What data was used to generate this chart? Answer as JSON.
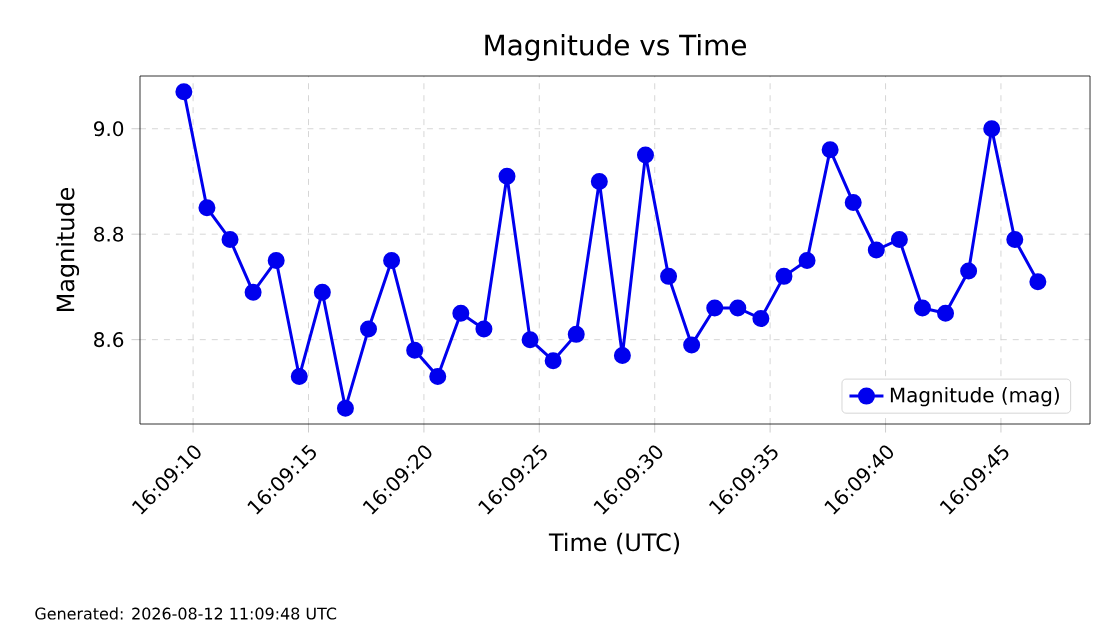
{
  "chart_data": {
    "type": "line",
    "title": "Magnitude vs Time",
    "xlabel": "Time (UTC)",
    "ylabel": "Magnitude",
    "annotations": [
      "Generated: 2026-08-12 11:09:48 UTC"
    ],
    "x": [
      16.1526667,
      16.1529444,
      16.1532222,
      16.1535,
      16.1537778,
      16.1540556,
      16.1543333,
      16.1546111,
      16.1548889,
      16.1551667,
      16.1554444,
      16.1557222,
      16.156,
      16.1562778,
      16.1565556,
      16.1568333,
      16.1571111,
      16.1573889,
      16.1576667,
      16.1579444,
      16.1582222,
      16.1585,
      16.1587778,
      16.1590556,
      16.1593333,
      16.1596111,
      16.1598889,
      16.1601667,
      16.1604444,
      16.1607222,
      16.161,
      16.1612778,
      16.1615556,
      16.1618333,
      16.1621111,
      16.1623889,
      16.1626667,
      16.1629444
    ],
    "series": [
      {
        "name": "Magnitude (mag)",
        "color": "#0000ee",
        "values": [
          9.07,
          8.85,
          8.79,
          8.69,
          8.75,
          8.53,
          8.69,
          8.47,
          8.62,
          8.75,
          8.58,
          8.53,
          8.65,
          8.62,
          8.91,
          8.6,
          8.56,
          8.61,
          8.9,
          8.57,
          8.95,
          8.72,
          8.59,
          8.66,
          8.66,
          8.64,
          8.72,
          8.75,
          8.96,
          8.86,
          8.77,
          8.79,
          8.66,
          8.65,
          8.73,
          9.0,
          8.79,
          8.71
        ]
      }
    ],
    "xlim": [
      16.1521389,
      16.1635722
    ],
    "ylim": [
      8.44,
      9.1
    ],
    "xticks": [
      {
        "value": 16.1527778,
        "label": "16:09:10"
      },
      {
        "value": 16.1541667,
        "label": "16:09:15"
      },
      {
        "value": 16.1555556,
        "label": "16:09:20"
      },
      {
        "value": 16.1569444,
        "label": "16:09:25"
      },
      {
        "value": 16.1583333,
        "label": "16:09:30"
      },
      {
        "value": 16.1597222,
        "label": "16:09:35"
      },
      {
        "value": 16.1611111,
        "label": "16:09:40"
      },
      {
        "value": 16.1625,
        "label": "16:09:45"
      }
    ],
    "yticks": [
      {
        "value": 8.6,
        "label": "8.6"
      },
      {
        "value": 8.8,
        "label": "8.8"
      },
      {
        "value": 9.0,
        "label": "9.0"
      }
    ],
    "grid": true,
    "legend": "bottom right",
    "marker": "circle",
    "line_style": "solid"
  }
}
